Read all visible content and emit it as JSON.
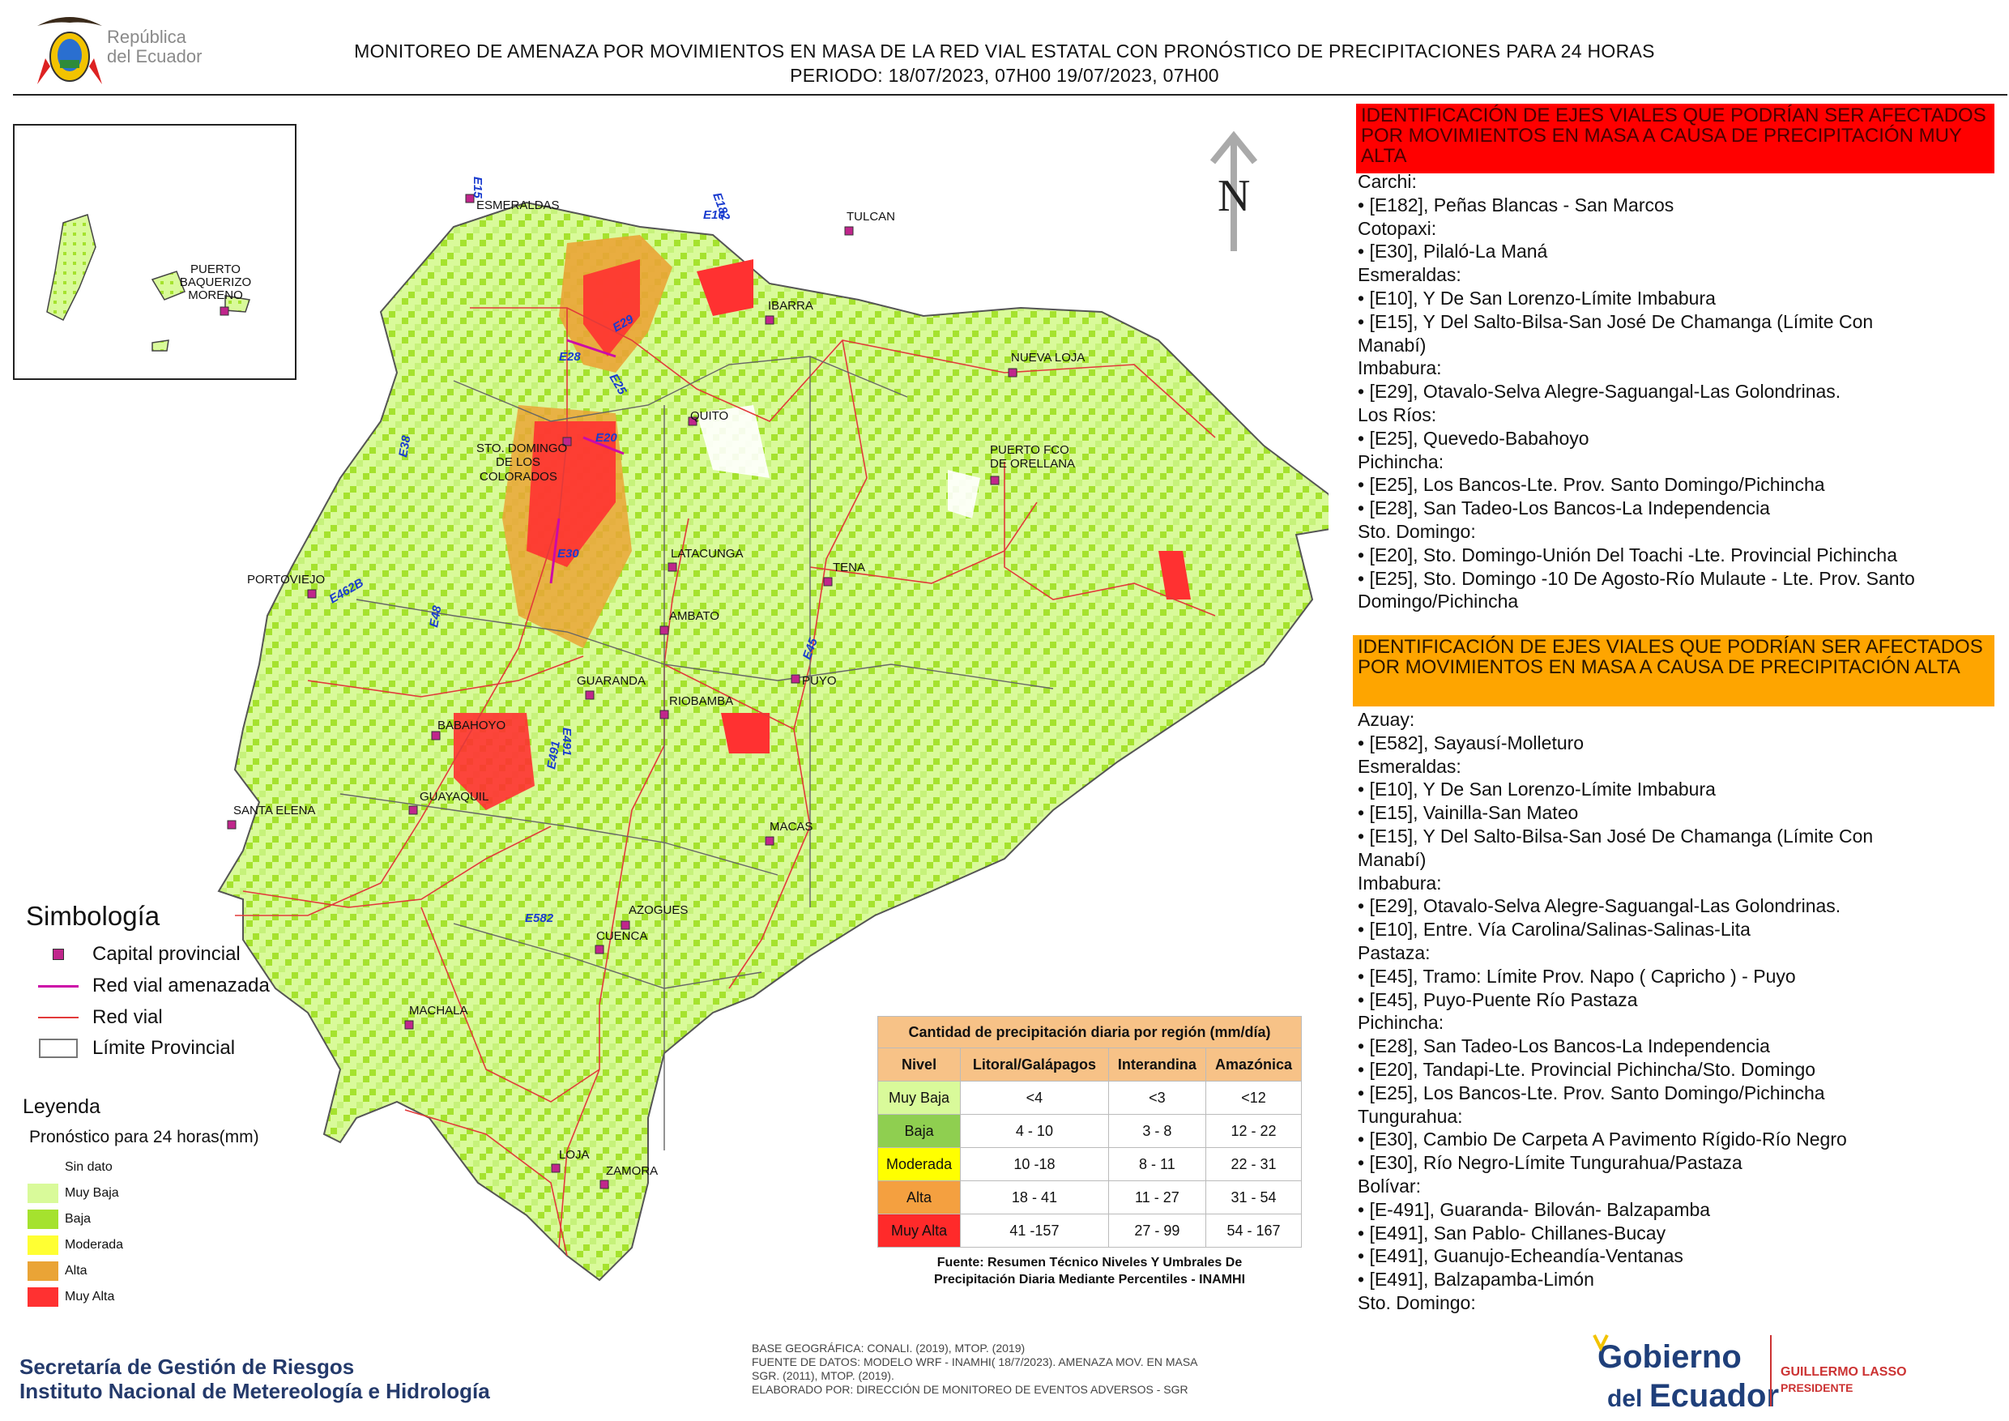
{
  "header": {
    "republica_text_1": "República",
    "republica_text_2": "del Ecuador",
    "title_line1": "MONITOREO DE AMENAZA POR MOVIMIENTOS EN MASA DE LA RED VIAL  ESTATAL  CON PRONÓSTICO  DE  PRECIPITACIONES PARA 24 HORAS",
    "title_line2": "PERIODO: 18/07/2023, 07H00 19/07/2023, 07H00"
  },
  "north_label": "N",
  "inset": {
    "city_label_1": "PUERTO",
    "city_label_2": "BAQUERIZO",
    "city_label_3": "MORENO"
  },
  "cities": [
    "ESMERALDAS",
    "TULCAN",
    "IBARRA",
    "NUEVA LOJA",
    "QUITO",
    "STO. DOMINGO",
    "DE LOS",
    "COLORADOS",
    "PUERTO FCO",
    "DE ORELLANA",
    "LATACUNGA",
    "TENA",
    "PORTOVIEJO",
    "AMBATO",
    "PUYO",
    "GUARANDA",
    "RIOBAMBA",
    "BABAHOYO",
    "SANTA ELENA",
    "GUAYAQUIL",
    "MACAS",
    "AZOGUES",
    "CUENCA",
    "MACHALA",
    "LOJA",
    "ZAMORA"
  ],
  "road_labels": [
    "E15",
    "E182",
    "E10",
    "E29",
    "E28",
    "E25",
    "E20",
    "E38",
    "E30",
    "E462B",
    "E48",
    "E45",
    "E491",
    "E491",
    "E582"
  ],
  "symbology": {
    "title": "Simbología",
    "items": [
      {
        "label": "Capital provincial",
        "icon": "capital-square-icon"
      },
      {
        "label": "Red vial amenazada",
        "icon": "magenta-line-icon"
      },
      {
        "label": "Red vial",
        "icon": "red-line-icon"
      },
      {
        "label": "Límite Provincial",
        "icon": "grey-box-icon"
      }
    ]
  },
  "legend": {
    "title": "Leyenda",
    "subtitle": "Pronóstico para 24 horas(mm)",
    "items": [
      {
        "label": "Sin dato",
        "color": "#ffffff"
      },
      {
        "label": "Muy Baja",
        "color": "#d9fa9a"
      },
      {
        "label": "Baja",
        "color": "#a5e22e"
      },
      {
        "label": "Moderada",
        "color": "#ffff33"
      },
      {
        "label": "Alta",
        "color": "#eaa436"
      },
      {
        "label": "Muy Alta",
        "color": "#ff3131"
      }
    ]
  },
  "table": {
    "caption": "Cantidad de precipitación diaria por región (mm/día)",
    "columns": [
      "Nivel",
      "Litoral/Galápagos",
      "Interandina",
      "Amazónica"
    ],
    "rows": [
      {
        "nivel": "Muy Baja",
        "color": "#d9fa9a",
        "litoral": "<4",
        "interandina": "<3",
        "amazonica": "<12"
      },
      {
        "nivel": "Baja",
        "color": "#8fcf50",
        "litoral": "4 - 10",
        "interandina": "3 - 8",
        "amazonica": "12 - 22"
      },
      {
        "nivel": "Moderada",
        "color": "#ffff00",
        "litoral": "10 -18",
        "interandina": "8 - 11",
        "amazonica": "22 - 31"
      },
      {
        "nivel": "Alta",
        "color": "#f4a040",
        "litoral": "18 - 41",
        "interandina": "11 - 27",
        "amazonica": "31 - 54"
      },
      {
        "nivel": "Muy Alta",
        "color": "#ff2a2a",
        "litoral": "41 -157",
        "interandina": "27 - 99",
        "amazonica": "54 - 167"
      }
    ],
    "source_line1": "Fuente: Resumen Técnico Niveles Y Umbrales De",
    "source_line2": "Precipitación Diaria Mediante Percentiles - INAMHI"
  },
  "footer": {
    "sgr_line1": "Secretaría de Gestión de Riesgos",
    "sgr_line2": "Instituto Nacional de Metereología e Hidrología",
    "notes": [
      "BASE GEOGRÁFICA: CONALI. (2019), MTOP. (2019)",
      "FUENTE DE DATOS: MODELO WRF - INAMHI( 18/7/2023).  AMENAZA MOV. EN MASA",
      "SGR. (2011), MTOP. (2019).",
      "ELABORADO POR: DIRECCIÓN DE MONITOREO DE EVENTOS ADVERSOS - SGR"
    ],
    "gob_word1": "Gobierno",
    "gob_word2": "del",
    "gob_word3": "Ecuador",
    "president_name": "GUILLERMO LASSO",
    "president_title": "PRESIDENTE"
  },
  "panel_muy_alta": {
    "header": "IDENTIFICACIÓN DE EJES VIALES QUE PODRÍAN SER AFECTADOS POR MOVIMIENTOS EN MASA A CAUSA DE PRECIPITACIÓN MUY ALTA",
    "lines": [
      "Carchi:",
      "• [E182], Peñas Blancas - San Marcos",
      "Cotopaxi:",
      "• [E30], Pilaló-La Maná",
      "Esmeraldas:",
      "• [E10], Y De San Lorenzo-Límite Imbabura",
      "• [E15], Y Del Salto-Bilsa-San José De Chamanga (Límite Con",
      "Manabí)",
      "Imbabura:",
      "• [E29], Otavalo-Selva Alegre-Saguangal-Las Golondrinas.",
      "Los Ríos:",
      "• [E25], Quevedo-Babahoyo",
      "Pichincha:",
      "• [E25], Los Bancos-Lte. Prov. Santo Domingo/Pichincha",
      "• [E28], San Tadeo-Los Bancos-La Independencia",
      "Sto. Domingo:",
      "• [E20], Sto. Domingo-Unión Del Toachi -Lte. Provincial Pichincha",
      "• [E25], Sto. Domingo -10 De Agosto-Río Mulaute - Lte. Prov. Santo",
      "Domingo/Pichincha"
    ]
  },
  "panel_alta": {
    "header": "IDENTIFICACIÓN DE EJES VIALES QUE PODRÍAN SER AFECTADOS POR MOVIMIENTOS EN MASA A CAUSA DE PRECIPITACIÓN  ALTA",
    "lines": [
      "Azuay:",
      "• [E582], Sayausí-Molleturo",
      "Esmeraldas:",
      "• [E10], Y De San Lorenzo-Límite Imbabura",
      "• [E15], Vainilla-San Mateo",
      "• [E15], Y Del Salto-Bilsa-San José De Chamanga (Límite Con",
      "Manabí)",
      "Imbabura:",
      "• [E29], Otavalo-Selva Alegre-Saguangal-Las Golondrinas.",
      "• [E10], Entre. Vía Carolina/Salinas-Salinas-Lita",
      "Pastaza:",
      "• [E45], Tramo: Límite Prov. Napo ( Capricho ) - Puyo",
      "• [E45], Puyo-Puente Río Pastaza",
      "Pichincha:",
      "• [E28], San Tadeo-Los Bancos-La Independencia",
      "• [E20], Tandapi-Lte. Provincial Pichincha/Sto. Domingo",
      "• [E25], Los Bancos-Lte. Prov. Santo Domingo/Pichincha",
      "Tungurahua:",
      "• [E30], Cambio De Carpeta A Pavimento Rígido-Río Negro",
      "• [E30], Río Negro-Límite Tungurahua/Pastaza",
      "Bolívar:",
      "• [E-491], Guaranda- Bilován- Balzapamba",
      "• [E491], San Pablo- Chillanes-Bucay",
      "• [E491], Guanujo-Echeandía-Ventanas",
      "• [E491], Balzapamba-Limón",
      "Sto. Domingo:"
    ]
  }
}
